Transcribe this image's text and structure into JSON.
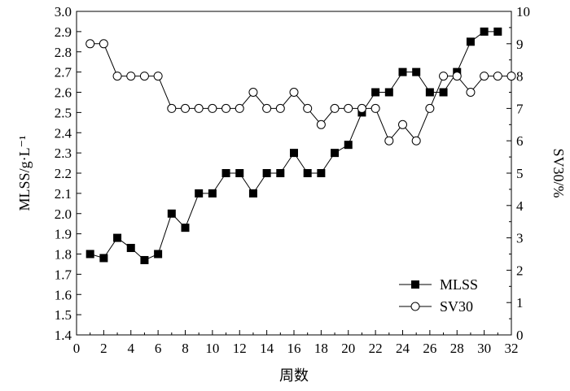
{
  "chart_data": {
    "type": "line",
    "xlabel": "周数",
    "ylabel_left": "MLSS/g·L⁻¹",
    "ylabel_right": "SV30/%",
    "xlim": [
      0,
      32
    ],
    "ylim_left": [
      1.4,
      3.0
    ],
    "ylim_right": [
      0,
      10
    ],
    "x_ticks": [
      "0",
      "2",
      "4",
      "6",
      "8",
      "10",
      "12",
      "14",
      "16",
      "18",
      "20",
      "22",
      "24",
      "26",
      "28",
      "30",
      "32"
    ],
    "y_left_ticks": [
      "1.4",
      "1.5",
      "1.6",
      "1.7",
      "1.8",
      "1.9",
      "2.0",
      "2.1",
      "2.2",
      "2.3",
      "2.4",
      "2.5",
      "2.6",
      "2.7",
      "2.8",
      "2.9",
      "3.0"
    ],
    "y_right_ticks": [
      "0",
      "1",
      "2",
      "3",
      "4",
      "5",
      "6",
      "7",
      "8",
      "9",
      "10"
    ],
    "legend_position": "bottom-right",
    "grid": false,
    "series": [
      {
        "name": "MLSS",
        "axis": "left",
        "marker": "filled-square",
        "x": [
          1,
          2,
          3,
          4,
          5,
          6,
          7,
          8,
          9,
          10,
          11,
          12,
          13,
          14,
          15,
          16,
          17,
          18,
          19,
          20,
          21,
          22,
          23,
          24,
          25,
          26,
          27,
          28,
          29,
          30,
          31
        ],
        "values": [
          1.8,
          1.78,
          1.88,
          1.83,
          1.77,
          1.8,
          2.0,
          1.93,
          2.1,
          2.1,
          2.2,
          2.2,
          2.1,
          2.2,
          2.2,
          2.3,
          2.2,
          2.2,
          2.3,
          2.34,
          2.5,
          2.6,
          2.6,
          2.7,
          2.7,
          2.6,
          2.6,
          2.7,
          2.85,
          2.9,
          2.9
        ]
      },
      {
        "name": "SV30",
        "axis": "right",
        "marker": "open-circle",
        "x": [
          1,
          2,
          3,
          4,
          5,
          6,
          7,
          8,
          9,
          10,
          11,
          12,
          13,
          14,
          15,
          16,
          17,
          18,
          19,
          20,
          21,
          22,
          23,
          24,
          25,
          26,
          27,
          28,
          29,
          30,
          31,
          32
        ],
        "values": [
          9,
          9,
          8,
          8,
          8,
          8,
          7,
          7,
          7,
          7,
          7,
          7,
          7.5,
          7,
          7,
          7.5,
          7,
          6.5,
          7,
          7,
          7,
          7,
          6,
          6.5,
          6,
          7,
          8,
          8,
          7.5,
          8,
          8,
          8
        ]
      }
    ]
  }
}
